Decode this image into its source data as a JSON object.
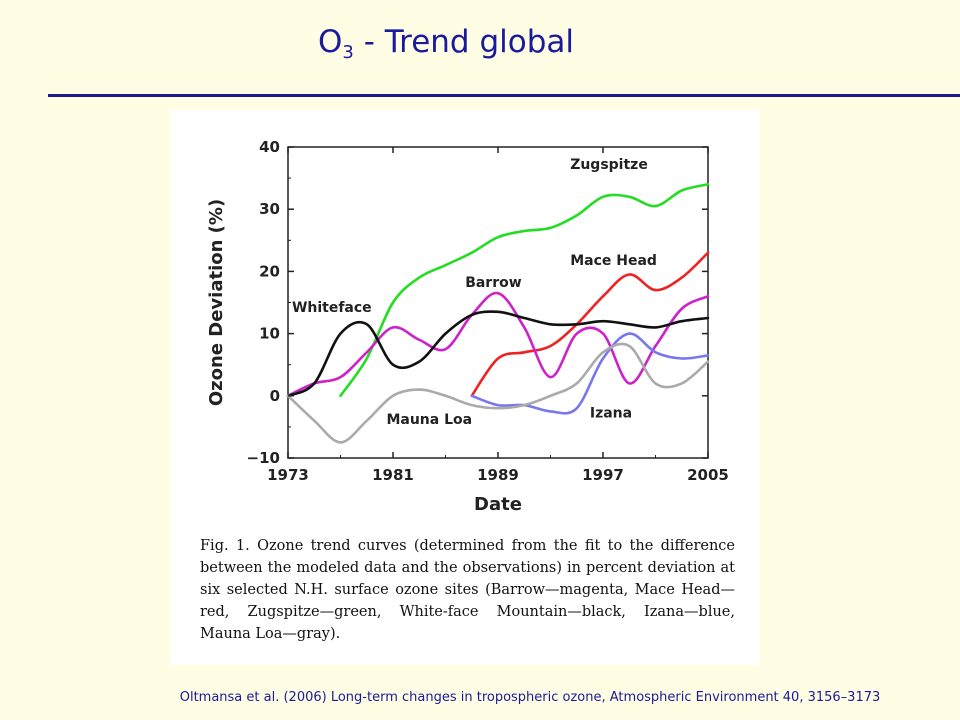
{
  "slide": {
    "title_main": "O",
    "title_sub": "3",
    "title_rest": " - Trend global",
    "citation": "Oltmansa et al. (2006) Long-term changes in tropospheric ozone, Atmospheric Environment 40, 3156–3173"
  },
  "figure": {
    "caption": "Fig. 1. Ozone trend curves (determined from the fit to the difference between the modeled data and the observations) in percent deviation at six selected N.H. surface ozone sites (Barrow—magenta, Mace Head—red, Zugspitze—green, White-face Mountain—black, Izana—blue, Mauna Loa—gray)."
  },
  "chart_data": {
    "type": "line",
    "title": "",
    "xlabel": "Date",
    "ylabel": "Ozone Deviation (%)",
    "xlim": [
      1973,
      2005
    ],
    "ylim": [
      -10,
      40
    ],
    "xticks": [
      1973,
      1981,
      1989,
      1997,
      2005
    ],
    "yticks": [
      -10,
      0,
      10,
      20,
      30,
      40
    ],
    "series": [
      {
        "name": "Zugspitze",
        "color": "#22dd22",
        "x": [
          1977,
          1979,
          1981,
          1983,
          1985,
          1987,
          1989,
          1991,
          1993,
          1995,
          1997,
          1999,
          2001,
          2003,
          2005
        ],
        "y": [
          0,
          6,
          15,
          19,
          21,
          23,
          25.5,
          26.5,
          27,
          29,
          32,
          32,
          30.5,
          33,
          34
        ]
      },
      {
        "name": "Mace Head",
        "color": "#ee2222",
        "x": [
          1987,
          1989,
          1991,
          1993,
          1995,
          1997,
          1999,
          2001,
          2003,
          2005
        ],
        "y": [
          0,
          6,
          7,
          8,
          11.5,
          16,
          19.5,
          17,
          19,
          23
        ]
      },
      {
        "name": "Barrow",
        "color": "#cc22cc",
        "x": [
          1973,
          1975,
          1977,
          1979,
          1981,
          1983,
          1985,
          1987,
          1989,
          1991,
          1993,
          1995,
          1997,
          1999,
          2001,
          2003,
          2005
        ],
        "y": [
          0,
          2,
          3,
          7,
          11,
          9,
          7.5,
          13,
          16.5,
          11,
          3,
          10,
          10,
          2,
          8,
          14,
          16
        ]
      },
      {
        "name": "Whiteface",
        "color": "#111111",
        "x": [
          1973,
          1975,
          1977,
          1979,
          1981,
          1983,
          1985,
          1987,
          1989,
          1991,
          1993,
          1995,
          1997,
          1999,
          2001,
          2003,
          2005
        ],
        "y": [
          0,
          2,
          10,
          11.5,
          5,
          5.5,
          10,
          13,
          13.5,
          12.5,
          11.5,
          11.5,
          12,
          11.5,
          11,
          12,
          12.5
        ]
      },
      {
        "name": "Izana",
        "color": "#7777ee",
        "x": [
          1987,
          1989,
          1991,
          1993,
          1995,
          1997,
          1999,
          2001,
          2003,
          2005
        ],
        "y": [
          0,
          -1.5,
          -1.5,
          -2.5,
          -2,
          6,
          10,
          7,
          6,
          6.5
        ]
      },
      {
        "name": "Mauna Loa",
        "color": "#aaaaaa",
        "x": [
          1973,
          1975,
          1977,
          1979,
          1981,
          1983,
          1985,
          1987,
          1989,
          1991,
          1993,
          1995,
          1997,
          1999,
          2001,
          2003,
          2005
        ],
        "y": [
          0,
          -4,
          -7.5,
          -4,
          0,
          1,
          0,
          -1.5,
          -2,
          -1.5,
          0,
          2,
          7,
          8,
          2,
          2,
          5.5
        ]
      }
    ]
  }
}
